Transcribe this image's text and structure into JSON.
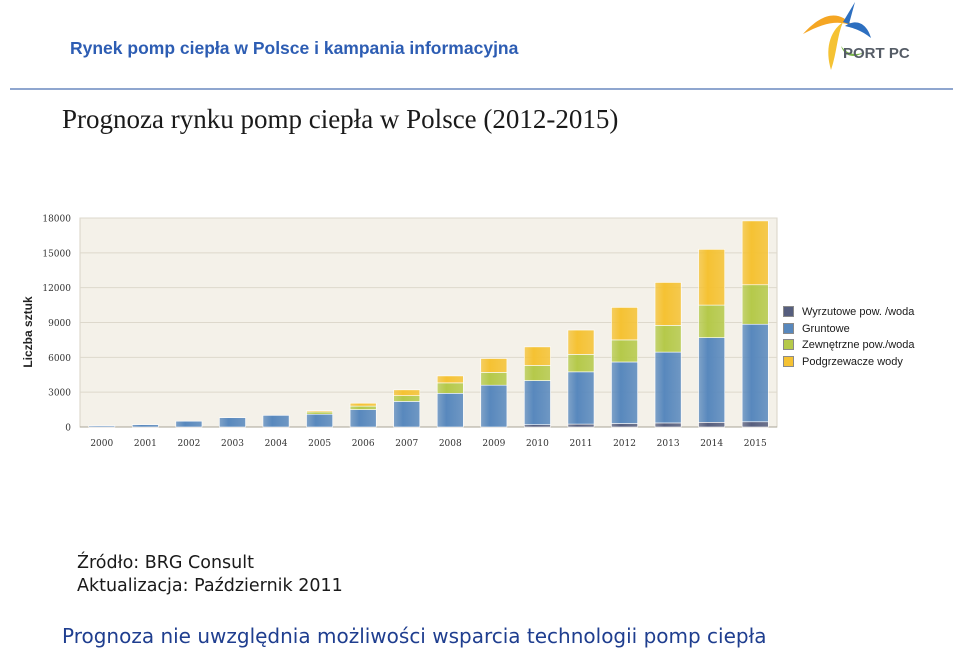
{
  "header": {
    "title": "Rynek pomp ciepła w Polsce i kampania informacyjna"
  },
  "logo": {
    "text": "PORT PC"
  },
  "slide": {
    "title": "Prognoza rynku pomp ciepła w Polsce (2012-2015)"
  },
  "source": {
    "line1": "Źródło: BRG Consult",
    "line2": "Aktualizacja: Październik 2011"
  },
  "footer": {
    "note": "Prognoza nie uwzględnia możliwości wsparcia technologii pomp ciepła"
  },
  "colors": {
    "wyrzutowe": "#565e7e",
    "gruntowe": "#5888bd",
    "zewnetrzne": "#b5c94a",
    "podgrzewacze": "#f5c233",
    "plot_bg": "#f4f1e9",
    "header_blue": "#2d5db3"
  },
  "chart_data": {
    "type": "bar",
    "stacked": true,
    "categories": [
      "2000",
      "2001",
      "2002",
      "2003",
      "2004",
      "2005",
      "2006",
      "2007",
      "2008",
      "2009",
      "2010",
      "2011",
      "2012",
      "2013",
      "2014",
      "2015"
    ],
    "series": [
      {
        "name": "Wyrzutowe pow. /woda",
        "color": "#565e7e",
        "values": [
          0,
          0,
          0,
          0,
          0,
          0,
          0,
          0,
          0,
          0,
          200,
          250,
          300,
          350,
          400,
          450
        ]
      },
      {
        "name": "Gruntowe",
        "color": "#5888bd",
        "values": [
          100,
          200,
          500,
          800,
          1000,
          1100,
          1500,
          2200,
          2900,
          3600,
          3800,
          4500,
          5300,
          6100,
          7300,
          8400
        ]
      },
      {
        "name": "Zewnętrzne pow./woda",
        "color": "#b5c94a",
        "values": [
          0,
          0,
          0,
          0,
          0,
          200,
          300,
          500,
          900,
          1100,
          1300,
          1500,
          1900,
          2300,
          2800,
          3400
        ]
      },
      {
        "name": "Podgrzewacze wody",
        "color": "#f5c233",
        "values": [
          0,
          0,
          0,
          0,
          0,
          100,
          250,
          500,
          600,
          1200,
          1600,
          2100,
          2800,
          3700,
          4800,
          5500
        ]
      }
    ],
    "yticks": [
      0,
      3000,
      6000,
      9000,
      12000,
      15000,
      18000
    ],
    "ylim": [
      0,
      18000
    ],
    "ylabel": "Liczba sztuk",
    "xlabel": "",
    "legend_position": "right",
    "grid": true
  }
}
